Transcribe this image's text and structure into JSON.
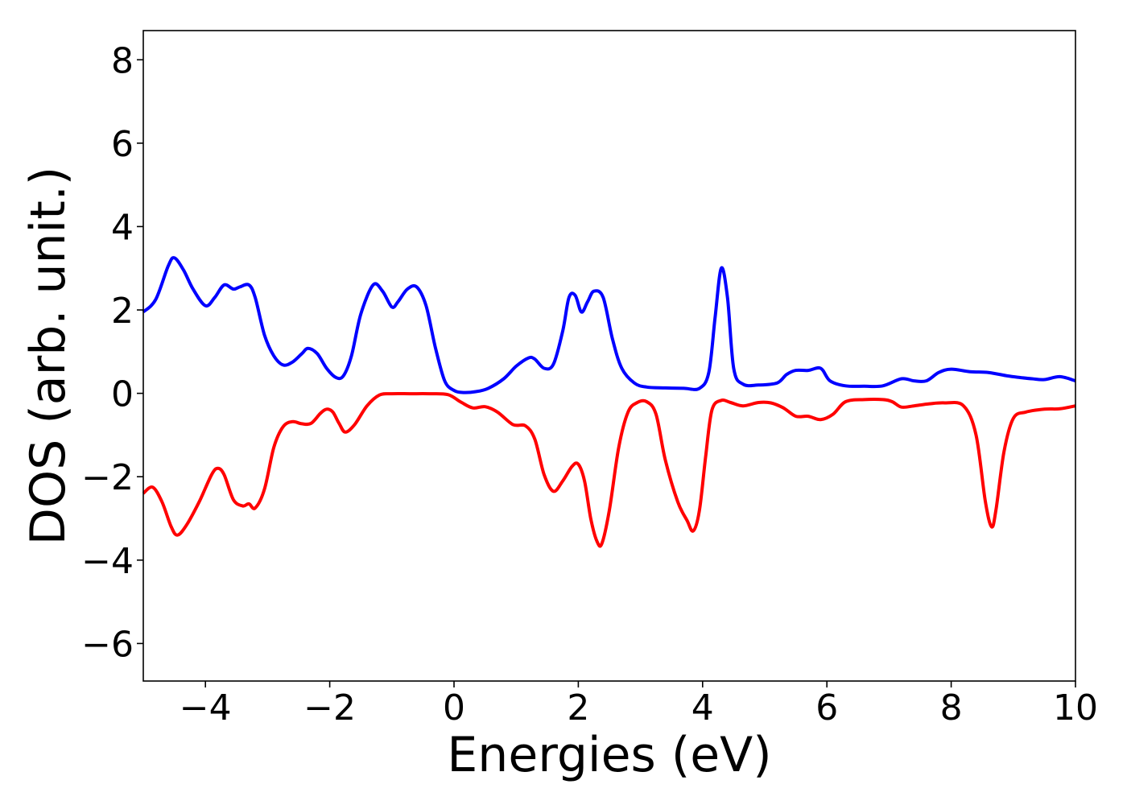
{
  "chart_data": {
    "type": "line",
    "title": "",
    "xlabel": "Energies (eV)",
    "ylabel": "DOS (arb. unit.)",
    "xlim": [
      -5,
      10
    ],
    "ylim": [
      -6.9,
      8.7
    ],
    "x_ticks": [
      -4,
      -2,
      0,
      2,
      4,
      6,
      8,
      10
    ],
    "x_tick_labels": [
      "−4",
      "−2",
      "0",
      "2",
      "4",
      "6",
      "8",
      "10"
    ],
    "y_ticks": [
      -6,
      -4,
      -2,
      0,
      2,
      4,
      6,
      8
    ],
    "y_tick_labels": [
      "−6",
      "−4",
      "−2",
      "0",
      "2",
      "4",
      "6",
      "8"
    ],
    "grid": false,
    "legend": "none",
    "series": [
      {
        "color": "#0000ff",
        "x": [
          -5.0,
          -4.8,
          -4.6,
          -4.5,
          -4.35,
          -4.2,
          -4.0,
          -3.85,
          -3.7,
          -3.55,
          -3.45,
          -3.3,
          -3.2,
          -3.05,
          -2.9,
          -2.75,
          -2.6,
          -2.45,
          -2.35,
          -2.2,
          -2.05,
          -1.9,
          -1.78,
          -1.65,
          -1.5,
          -1.3,
          -1.15,
          -1.0,
          -0.9,
          -0.75,
          -0.6,
          -0.45,
          -0.3,
          -0.15,
          0.0,
          0.15,
          0.35,
          0.55,
          0.8,
          1.0,
          1.2,
          1.3,
          1.45,
          1.6,
          1.75,
          1.85,
          1.95,
          2.05,
          2.15,
          2.25,
          2.4,
          2.55,
          2.7,
          2.9,
          3.1,
          3.4,
          3.7,
          3.95,
          4.1,
          4.2,
          4.3,
          4.4,
          4.5,
          4.65,
          4.9,
          5.2,
          5.35,
          5.5,
          5.7,
          5.9,
          6.05,
          6.3,
          6.6,
          6.9,
          7.2,
          7.4,
          7.6,
          7.8,
          8.0,
          8.3,
          8.6,
          8.9,
          9.1,
          9.3,
          9.5,
          9.75,
          10.0
        ],
        "y": [
          1.95,
          2.25,
          3.05,
          3.25,
          2.95,
          2.5,
          2.1,
          2.3,
          2.6,
          2.5,
          2.55,
          2.6,
          2.3,
          1.4,
          0.9,
          0.68,
          0.75,
          0.95,
          1.08,
          0.95,
          0.6,
          0.38,
          0.42,
          0.9,
          1.9,
          2.6,
          2.45,
          2.07,
          2.2,
          2.5,
          2.55,
          2.1,
          1.1,
          0.3,
          0.07,
          0.02,
          0.04,
          0.12,
          0.35,
          0.65,
          0.85,
          0.82,
          0.6,
          0.7,
          1.5,
          2.3,
          2.35,
          1.95,
          2.2,
          2.45,
          2.3,
          1.3,
          0.6,
          0.25,
          0.15,
          0.13,
          0.12,
          0.12,
          0.5,
          1.8,
          3.0,
          2.3,
          0.6,
          0.22,
          0.2,
          0.25,
          0.45,
          0.55,
          0.55,
          0.6,
          0.3,
          0.18,
          0.17,
          0.18,
          0.35,
          0.3,
          0.3,
          0.5,
          0.58,
          0.52,
          0.5,
          0.42,
          0.38,
          0.35,
          0.33,
          0.4,
          0.3
        ]
      },
      {
        "color": "#ff0000",
        "x": [
          -5.0,
          -4.85,
          -4.7,
          -4.55,
          -4.45,
          -4.3,
          -4.1,
          -3.9,
          -3.8,
          -3.7,
          -3.55,
          -3.4,
          -3.3,
          -3.2,
          -3.05,
          -2.9,
          -2.75,
          -2.6,
          -2.45,
          -2.3,
          -2.15,
          -2.05,
          -1.95,
          -1.85,
          -1.75,
          -1.6,
          -1.4,
          -1.2,
          -1.0,
          -0.7,
          -0.4,
          -0.1,
          0.1,
          0.3,
          0.5,
          0.7,
          0.95,
          1.15,
          1.3,
          1.45,
          1.6,
          1.75,
          1.9,
          2.0,
          2.1,
          2.2,
          2.3,
          2.38,
          2.5,
          2.65,
          2.8,
          2.95,
          3.1,
          3.25,
          3.4,
          3.6,
          3.75,
          3.85,
          3.95,
          4.05,
          4.15,
          4.3,
          4.45,
          4.65,
          4.9,
          5.1,
          5.3,
          5.5,
          5.7,
          5.9,
          6.1,
          6.3,
          6.6,
          6.9,
          7.05,
          7.2,
          7.4,
          7.65,
          7.9,
          8.2,
          8.4,
          8.55,
          8.65,
          8.72,
          8.85,
          9.0,
          9.2,
          9.5,
          9.75,
          10.0
        ],
        "y": [
          -2.4,
          -2.25,
          -2.6,
          -3.2,
          -3.4,
          -3.15,
          -2.6,
          -1.95,
          -1.8,
          -1.95,
          -2.55,
          -2.7,
          -2.65,
          -2.75,
          -2.3,
          -1.3,
          -0.8,
          -0.68,
          -0.73,
          -0.72,
          -0.48,
          -0.38,
          -0.45,
          -0.72,
          -0.93,
          -0.75,
          -0.3,
          -0.04,
          -0.01,
          -0.01,
          -0.01,
          -0.03,
          -0.2,
          -0.35,
          -0.32,
          -0.45,
          -0.75,
          -0.78,
          -1.1,
          -1.95,
          -2.35,
          -2.1,
          -1.75,
          -1.7,
          -2.1,
          -3.0,
          -3.55,
          -3.6,
          -2.8,
          -1.3,
          -0.45,
          -0.22,
          -0.2,
          -0.5,
          -1.6,
          -2.6,
          -3.05,
          -3.3,
          -2.8,
          -1.5,
          -0.4,
          -0.17,
          -0.22,
          -0.3,
          -0.22,
          -0.23,
          -0.35,
          -0.55,
          -0.55,
          -0.63,
          -0.5,
          -0.2,
          -0.15,
          -0.15,
          -0.2,
          -0.33,
          -0.3,
          -0.25,
          -0.23,
          -0.3,
          -1.0,
          -2.6,
          -3.2,
          -2.8,
          -1.4,
          -0.6,
          -0.45,
          -0.38,
          -0.37,
          -0.3
        ]
      }
    ]
  }
}
